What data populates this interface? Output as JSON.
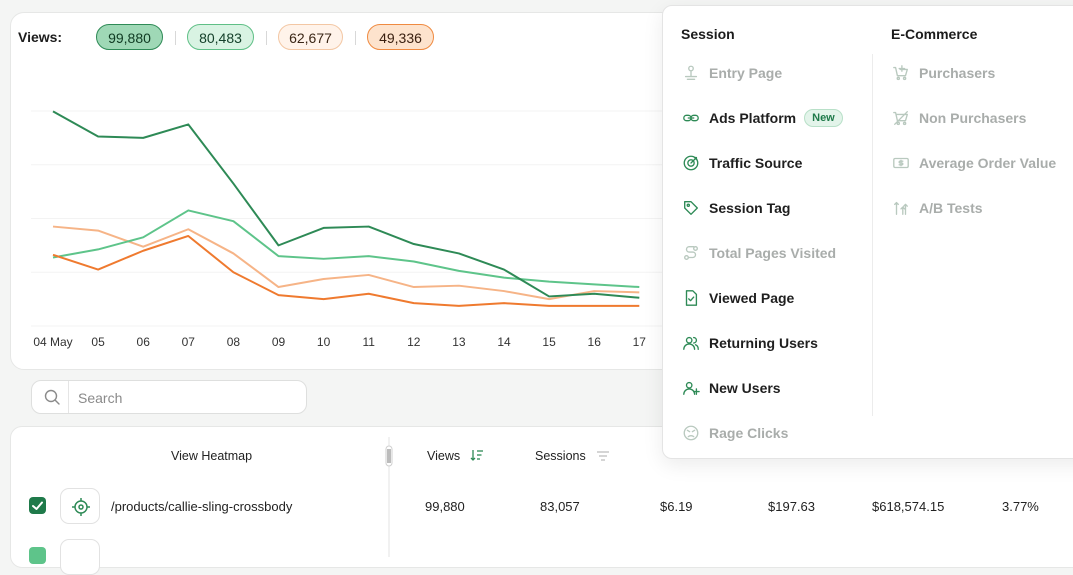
{
  "views": {
    "label": "Views:",
    "pills": [
      {
        "value": "99,880",
        "bg": "#9fd8b6",
        "border": "#2e8a56",
        "color": "#0f3a22"
      },
      {
        "value": "80,483",
        "bg": "#d9f3e3",
        "border": "#5fbf86",
        "color": "#14402a"
      },
      {
        "value": "62,677",
        "bg": "#fff3ea",
        "border": "#f3c7a4",
        "color": "#3a2616"
      },
      {
        "value": "49,336",
        "bg": "#fde3cd",
        "border": "#ef8a40",
        "color": "#3a2010"
      }
    ]
  },
  "chart_data": {
    "type": "line",
    "x": [
      "04 May",
      "05",
      "06",
      "07",
      "08",
      "09",
      "10",
      "11",
      "12",
      "13",
      "14",
      "15",
      "16",
      "17"
    ],
    "series": [
      {
        "values": [
          99880,
          90500,
          90000,
          95000,
          73000,
          50000,
          56500,
          57000,
          50500,
          47000,
          41000,
          31000,
          32000,
          30500
        ],
        "color": "#2e8a56"
      },
      {
        "values": [
          45500,
          48500,
          53000,
          63000,
          59000,
          46000,
          45000,
          46000,
          44000,
          40500,
          38000,
          36500,
          35500,
          34500
        ],
        "color": "#5ec48a"
      },
      {
        "values": [
          57000,
          55500,
          49500,
          56000,
          47000,
          34500,
          37500,
          39000,
          34500,
          35000,
          33000,
          30000,
          33000,
          32500
        ],
        "color": "#f6b487"
      },
      {
        "values": [
          46500,
          41000,
          48000,
          53500,
          40000,
          31500,
          30000,
          32000,
          28500,
          27500,
          28500,
          27500,
          27500,
          27500
        ],
        "color": "#ef7a2f"
      }
    ]
  },
  "search": {
    "placeholder": "Search"
  },
  "table": {
    "headers": {
      "view_heatmap": "View Heatmap",
      "views": "Views",
      "sessions": "Sessions"
    },
    "rows": [
      {
        "path": "/products/callie-sling-crossbody",
        "views": "99,880",
        "sessions": "83,057",
        "c3": "$6.19",
        "c4": "$197.63",
        "c5": "$618,574.15",
        "c6": "3.77%"
      }
    ]
  },
  "dropdown": {
    "session_title": "Session",
    "ecommerce_title": "E-Commerce",
    "session_items": [
      {
        "label": "Entry Page",
        "icon": "entry-page-icon",
        "enabled": false
      },
      {
        "label": "Ads Platform",
        "icon": "link-icon",
        "enabled": true,
        "badge": "New"
      },
      {
        "label": "Traffic Source",
        "icon": "target-icon",
        "enabled": true
      },
      {
        "label": "Session Tag",
        "icon": "tag-icon",
        "enabled": true
      },
      {
        "label": "Total Pages Visited",
        "icon": "route-icon",
        "enabled": false
      },
      {
        "label": "Viewed Page",
        "icon": "page-check-icon",
        "enabled": true
      },
      {
        "label": "Returning Users",
        "icon": "users-icon",
        "enabled": true
      },
      {
        "label": "New Users",
        "icon": "user-plus-icon",
        "enabled": true
      },
      {
        "label": "Rage Clicks",
        "icon": "angry-face-icon",
        "enabled": false
      }
    ],
    "ecommerce_items": [
      {
        "label": "Purchasers",
        "icon": "cart-plus-icon",
        "enabled": false
      },
      {
        "label": "Non Purchasers",
        "icon": "cart-off-icon",
        "enabled": false
      },
      {
        "label": "Average Order Value",
        "icon": "dollar-bill-icon",
        "enabled": false
      },
      {
        "label": "A/B Tests",
        "icon": "ab-test-icon",
        "enabled": false
      }
    ]
  }
}
